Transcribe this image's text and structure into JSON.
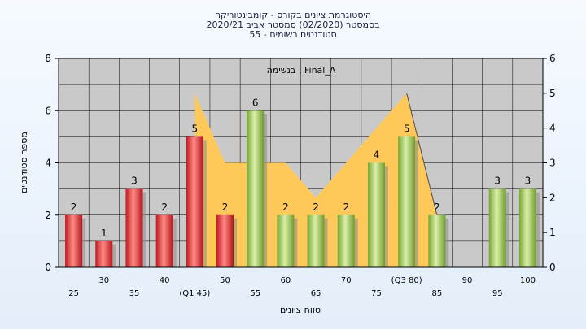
{
  "title_lines": [
    "היסטוגרמת ציונים בקורס - קומבינטוריקה",
    "בסמסטר  (02/2020)  סמסטר אביב 2020/21",
    "סטודנטים רשומים - 55"
  ],
  "colors": {
    "plot_bg": "#c9c9c9",
    "grid": "#000000",
    "area_fill": "#ffc95a",
    "area_line": "#4a4a4a",
    "bar_red": "#e0242c",
    "bar_red_light": "#ff8a86",
    "bar_green": "#8fbe44",
    "bar_green_light": "#d9f0a8"
  },
  "chart_data": {
    "type": "bar",
    "title": "היסטוגרמת ציונים בקורס - קומבינטוריקה",
    "xlabel": "טווח ציונים",
    "ylabel": "מספר סטודנטים",
    "annotation": "בנשימה : Final_A",
    "ylim": [
      0,
      8
    ],
    "y2lim": [
      0,
      6
    ],
    "yticks": [
      "0",
      "2",
      "4",
      "6",
      "8"
    ],
    "y2ticks": [
      "0",
      "1",
      "2",
      "3",
      "4",
      "5",
      "6"
    ],
    "grid": true,
    "categories": [
      "25",
      "30",
      "35",
      "40",
      "(Q1 45)",
      "50",
      "55",
      "60",
      "65",
      "70",
      "75",
      "(Q3 80)",
      "85",
      "90",
      "95",
      "100"
    ],
    "values": [
      2,
      1,
      3,
      2,
      5,
      2,
      6,
      2,
      2,
      2,
      4,
      5,
      2,
      0,
      3,
      3
    ],
    "data_labels": [
      "2",
      "1",
      "3",
      "2",
      "5",
      "2",
      "6",
      "2",
      "2",
      "2",
      "4",
      "5",
      "2",
      "",
      "3",
      "3"
    ],
    "bar_colors": [
      "red",
      "red",
      "red",
      "red",
      "red",
      "red",
      "green",
      "green",
      "green",
      "green",
      "green",
      "green",
      "green",
      "green",
      "green",
      "green"
    ],
    "area_series": {
      "axis": "right",
      "values": [
        null,
        null,
        null,
        null,
        5,
        3,
        3,
        3,
        2,
        3,
        4,
        5,
        1.5,
        null,
        null,
        null
      ]
    }
  }
}
